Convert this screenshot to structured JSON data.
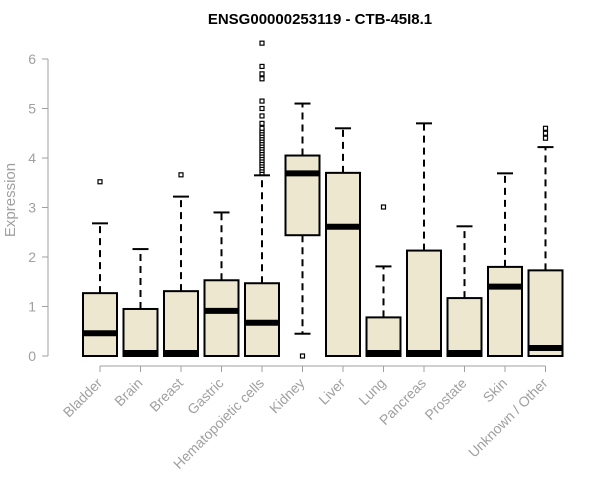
{
  "chart_data": {
    "type": "box",
    "title": "ENSG00000253119 - CTB-45I8.1",
    "xlabel": "",
    "ylabel": "Expression",
    "ylim": [
      0,
      6
    ],
    "yticks": [
      0,
      1,
      2,
      3,
      4,
      5,
      6
    ],
    "grid": false,
    "colors": {
      "box_fill": "#ede7cf",
      "box_stroke": "#000000",
      "axis": "#a0a0a0"
    },
    "categories": [
      "Bladder",
      "Brain",
      "Breast",
      "Gastric",
      "Hematopoietic cells",
      "Kidney",
      "Liver",
      "Lung",
      "Pancreas",
      "Prostate",
      "Skin",
      "Unknown / Other"
    ],
    "boxes": [
      {
        "category": "Bladder",
        "min": 0,
        "q1": 0,
        "median": 0.4,
        "q3": 1.27,
        "max": 2.68,
        "outliers": [
          3.52
        ]
      },
      {
        "category": "Brain",
        "min": 0,
        "q1": 0,
        "median": 0.0,
        "q3": 0.95,
        "max": 2.16,
        "outliers": []
      },
      {
        "category": "Breast",
        "min": 0,
        "q1": 0,
        "median": 0.0,
        "q3": 1.31,
        "max": 3.22,
        "outliers": [
          3.66
        ]
      },
      {
        "category": "Gastric",
        "min": 0,
        "q1": 0,
        "median": 0.85,
        "q3": 1.53,
        "max": 2.9,
        "outliers": []
      },
      {
        "category": "Hematopoietic cells",
        "min": 0,
        "q1": 0,
        "median": 0.61,
        "q3": 1.47,
        "max": 3.65,
        "outliers": [
          3.7,
          3.75,
          3.8,
          3.85,
          3.9,
          3.95,
          4.0,
          4.05,
          4.1,
          4.15,
          4.2,
          4.25,
          4.3,
          4.35,
          4.4,
          4.45,
          4.5,
          4.55,
          4.6,
          4.7,
          4.85,
          5.0,
          5.15,
          5.6,
          5.7,
          5.85,
          6.32
        ]
      },
      {
        "category": "Kidney",
        "min": 0.45,
        "q1": 2.44,
        "median": 3.63,
        "q3": 4.05,
        "max": 5.1,
        "outliers": [
          0.0
        ]
      },
      {
        "category": "Liver",
        "min": 0,
        "q1": 0,
        "median": 2.55,
        "q3": 3.7,
        "max": 4.6,
        "outliers": []
      },
      {
        "category": "Lung",
        "min": 0,
        "q1": 0,
        "median": 0.0,
        "q3": 0.78,
        "max": 1.81,
        "outliers": [
          3.01
        ]
      },
      {
        "category": "Pancreas",
        "min": 0,
        "q1": 0,
        "median": 0.0,
        "q3": 2.13,
        "max": 4.7,
        "outliers": []
      },
      {
        "category": "Prostate",
        "min": 0,
        "q1": 0,
        "median": 0.0,
        "q3": 1.17,
        "max": 2.62,
        "outliers": []
      },
      {
        "category": "Skin",
        "min": 0,
        "q1": 0,
        "median": 1.34,
        "q3": 1.8,
        "max": 3.69,
        "outliers": []
      },
      {
        "category": "Unknown / Other",
        "min": 0,
        "q1": 0,
        "median": 0.1,
        "q3": 1.73,
        "max": 4.22,
        "outliers": [
          4.4,
          4.5,
          4.6
        ]
      }
    ]
  }
}
